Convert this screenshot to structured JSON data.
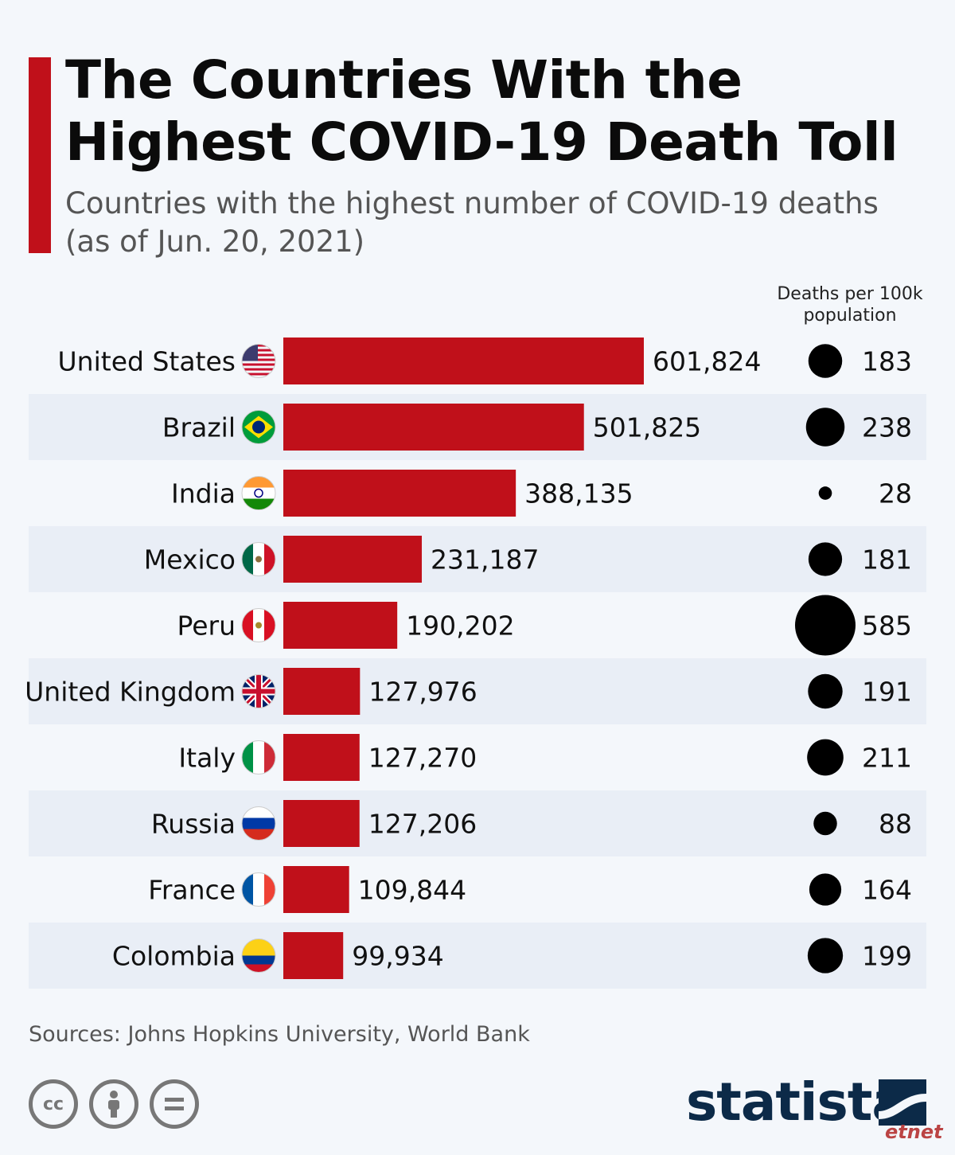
{
  "title": "The Countries With the Highest COVID-19 Death Toll",
  "subtitle": "Countries with the highest number of COVID-19 deaths (as of Jun. 20, 2021)",
  "column_header": "Deaths per 100k population",
  "source": "Sources: Johns Hopkins University, World Bank",
  "brand": "statista",
  "watermark": "etnet",
  "colors": {
    "bar": "#c0101a",
    "accent": "#c0101a",
    "dot": "#000000",
    "stripe": "#e9eef6"
  },
  "icons": [
    "cc-icon",
    "attribution-icon",
    "no-derivatives-icon",
    "statista-logo-icon"
  ],
  "chart_data": {
    "type": "bar",
    "orientation": "horizontal",
    "categories": [
      "United States",
      "Brazil",
      "India",
      "Mexico",
      "Peru",
      "United Kingdom",
      "Italy",
      "Russia",
      "France",
      "Colombia"
    ],
    "values": [
      601824,
      501825,
      388135,
      231187,
      190202,
      127976,
      127270,
      127206,
      109844,
      99934
    ],
    "value_labels": [
      "601,824",
      "501,825",
      "388,135",
      "231,187",
      "190,202",
      "127,976",
      "127,270",
      "127,206",
      "109,844",
      "99,934"
    ],
    "deaths_per_100k": [
      183,
      238,
      28,
      181,
      585,
      191,
      211,
      88,
      164,
      199
    ],
    "flag_icons": [
      "flag-us-icon",
      "flag-brazil-icon",
      "flag-india-icon",
      "flag-mexico-icon",
      "flag-peru-icon",
      "flag-uk-icon",
      "flag-italy-icon",
      "flag-russia-icon",
      "flag-france-icon",
      "flag-colombia-icon"
    ]
  }
}
